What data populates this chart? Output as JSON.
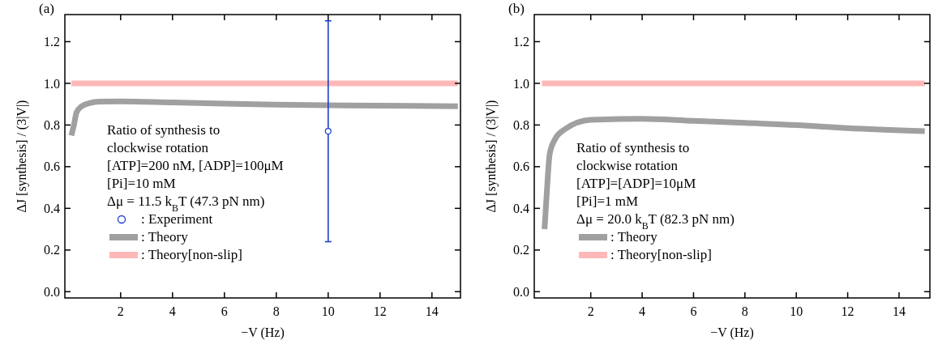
{
  "chart_data": [
    {
      "type": "line",
      "title": "(a)",
      "xlabel": "−V (Hz)",
      "ylabel": "ΔJ [synthesis] / (3|V|)",
      "annotations": [
        "Ratio of synthesis to",
        "clockwise rotation",
        "[ATP]=200 nM, [ADP]=100μM",
        "[Pi]=10 mM",
        "Δμ = 11.5 k$_{B}$T (47.3 pN nm)"
      ],
      "xlim": [
        -0.15,
        15.1
      ],
      "ylim": [
        -0.03,
        1.33
      ],
      "xticks": [
        2,
        4,
        6,
        8,
        10,
        12,
        14
      ],
      "yticks": [
        {
          "value": 0,
          "label": "0.0"
        },
        {
          "value": 0.2,
          "label": "0.2"
        },
        {
          "value": 0.4,
          "label": "0.4"
        },
        {
          "value": 0.6,
          "label": "0.6"
        },
        {
          "value": 0.8,
          "label": "0.8"
        },
        {
          "value": 1,
          "label": "1.0"
        },
        {
          "value": 1.2,
          "label": "1.2"
        }
      ],
      "legend": "bottom left",
      "series": [
        {
          "name": ": Experiment",
          "type": "scatter",
          "marker": "circle",
          "color": "#1a3fc4",
          "x": [
            10
          ],
          "values": [
            0.77
          ],
          "errors": [
            [
              0.24,
              1.3
            ]
          ]
        },
        {
          "name": ": Theory",
          "color": "#a0a0a0",
          "x": [
            0.1,
            0.2,
            0.3,
            0.5,
            0.8,
            1.2,
            2,
            4,
            6,
            8,
            10,
            12,
            15
          ],
          "values": [
            0.75,
            0.8,
            0.86,
            0.89,
            0.905,
            0.912,
            0.913,
            0.908,
            0.903,
            0.898,
            0.895,
            0.893,
            0.89
          ]
        },
        {
          "name": ": Theory[non-slip]",
          "color": "#ffb8b8",
          "x": [
            0.1,
            15
          ],
          "values": [
            1,
            1
          ]
        }
      ]
    },
    {
      "type": "line",
      "title": "(b)",
      "xlabel": "−V (Hz)",
      "ylabel": "ΔJ [synthesis] / (3|V|)",
      "annotations": [
        "Ratio of synthesis to",
        "clockwise rotation",
        "[ATP]=[ADP]=10μM",
        "[Pi]=1 mM",
        "Δμ = 20.0 k$_{B}$T (82.3 pN nm)"
      ],
      "xlim": [
        -0.2,
        15.2
      ],
      "ylim": [
        -0.03,
        1.33
      ],
      "xticks": [
        2,
        4,
        6,
        8,
        10,
        12,
        14
      ],
      "yticks": [
        {
          "value": 0,
          "label": "0.0"
        },
        {
          "value": 0.2,
          "label": "0.2"
        },
        {
          "value": 0.4,
          "label": "0.4"
        },
        {
          "value": 0.6,
          "label": "0.6"
        },
        {
          "value": 0.8,
          "label": "0.8"
        },
        {
          "value": 1,
          "label": "1.0"
        },
        {
          "value": 1.2,
          "label": "1.2"
        }
      ],
      "legend": "bottom left",
      "series": [
        {
          "name": ": Theory",
          "color": "#a0a0a0",
          "x": [
            0.2,
            0.3,
            0.4,
            0.6,
            1,
            2,
            4,
            6,
            8,
            10,
            12,
            15
          ],
          "values": [
            0.3,
            0.5,
            0.66,
            0.73,
            0.78,
            0.825,
            0.83,
            0.82,
            0.81,
            0.8,
            0.785,
            0.77
          ]
        },
        {
          "name": ": Theory[non-slip]",
          "color": "#ffb8b8",
          "x": [
            0.1,
            15
          ],
          "values": [
            1,
            1
          ]
        }
      ]
    }
  ]
}
